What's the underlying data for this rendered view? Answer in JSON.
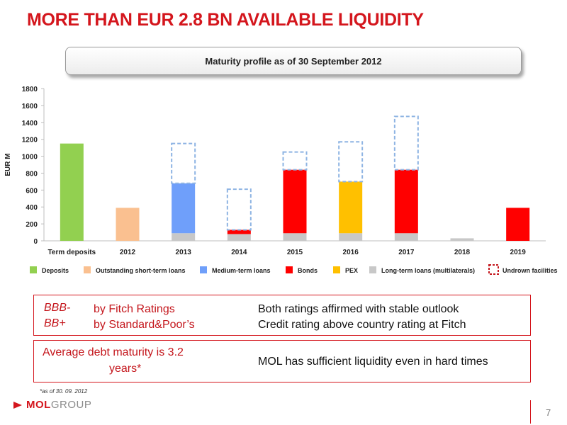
{
  "title": "MORE THAN EUR 2.8 BN AVAILABLE LIQUIDITY",
  "subtitle": "Maturity profile as of 30 September 2012",
  "colors": {
    "deposits": "#92d050",
    "short_term_loans": "#fac090",
    "medium_term_loans": "#6f9ffa",
    "bonds": "#ff0000",
    "pex": "#ffc000",
    "long_term_loans": "#c8c8c8",
    "undrawn": "#8eb4e3",
    "brand_red": "#d4161d"
  },
  "chart_data": {
    "type": "bar",
    "stacked": true,
    "categories": [
      "Term deposits",
      "2012",
      "2013",
      "2014",
      "2015",
      "2016",
      "2017",
      "2018",
      "2019"
    ],
    "ylabel": "EUR M",
    "ylim": [
      0,
      1800
    ],
    "yticks": [
      0,
      200,
      400,
      600,
      800,
      1000,
      1200,
      1400,
      1600,
      1800
    ],
    "grid": false,
    "legend_position": "bottom",
    "series": [
      {
        "name": "Deposits",
        "color": "#92d050",
        "values": [
          1150,
          0,
          0,
          0,
          0,
          0,
          0,
          0,
          0
        ]
      },
      {
        "name": "Outstanding short-term loans",
        "color": "#fac090",
        "values": [
          0,
          390,
          0,
          0,
          0,
          0,
          0,
          0,
          0
        ]
      },
      {
        "name": "Long-term loans (multilaterals)",
        "color": "#c8c8c8",
        "values": [
          0,
          0,
          90,
          80,
          90,
          90,
          90,
          30,
          0
        ]
      },
      {
        "name": "Medium-term loans",
        "color": "#6f9ffa",
        "values": [
          0,
          0,
          590,
          0,
          0,
          0,
          0,
          0,
          0
        ]
      },
      {
        "name": "Bonds",
        "color": "#ff0000",
        "values": [
          0,
          0,
          0,
          50,
          750,
          0,
          750,
          0,
          390
        ]
      },
      {
        "name": "PEX",
        "color": "#ffc000",
        "values": [
          0,
          0,
          0,
          0,
          0,
          610,
          0,
          0,
          0
        ]
      },
      {
        "name": "Undrown facilities",
        "color": "#8eb4e3",
        "dashed": true,
        "values": [
          0,
          0,
          470,
          480,
          210,
          470,
          630,
          0,
          0
        ]
      }
    ]
  },
  "legend": [
    {
      "label": "Deposits",
      "color": "#92d050"
    },
    {
      "label": "Outstanding short-term loans",
      "color": "#fac090"
    },
    {
      "label": "Medium-term loans",
      "color": "#6f9ffa"
    },
    {
      "label": "Bonds",
      "color": "#ff0000"
    },
    {
      "label": "PEX",
      "color": "#ffc000"
    },
    {
      "label": "Long-term loans (multilaterals)",
      "color": "#c8c8c8"
    },
    {
      "label": "Undrown facilities",
      "color": "#c4161c",
      "dashed": true
    }
  ],
  "ratings": {
    "fitch_grade": "BBB-",
    "sp_grade": "BB+",
    "fitch_label": "by Fitch Ratings",
    "sp_label": "by Standard&Poor’s",
    "note_line1": "Both ratings affirmed with stable outlook",
    "note_line2": "Credit rating above country rating at Fitch"
  },
  "maturity": {
    "line1": "Average debt maturity is 3.2",
    "line2": "years*",
    "note": "MOL has sufficient liquidity even in hard times"
  },
  "footnote": "*as of 30. 09. 2012",
  "logo": {
    "part1": "MOL",
    "part2": "GROUP"
  },
  "page_number": "7"
}
